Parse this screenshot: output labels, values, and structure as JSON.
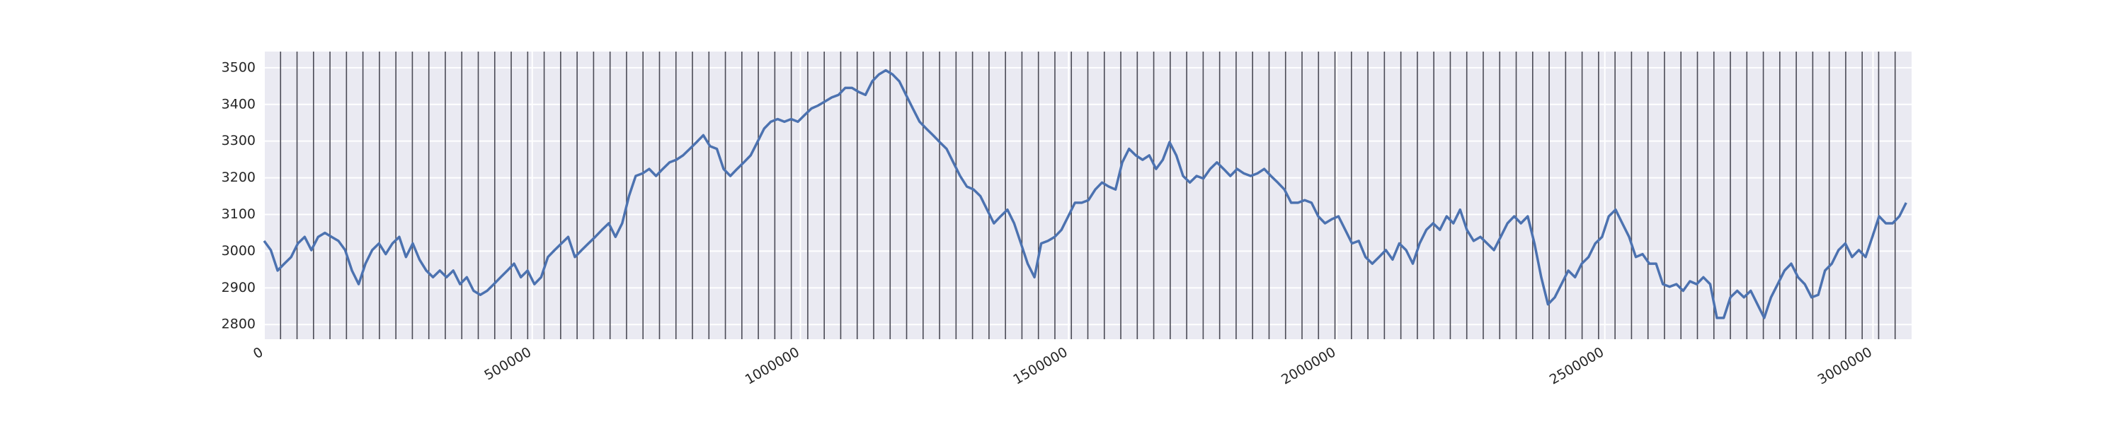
{
  "chart_data": {
    "type": "line",
    "x": [
      0,
      12600,
      25200,
      37800,
      50400,
      63000,
      75600,
      88200,
      100800,
      113400,
      126000,
      138600,
      151200,
      163800,
      176400,
      189000,
      201600,
      214200,
      226800,
      239400,
      252000,
      264600,
      277200,
      289800,
      302400,
      315000,
      327600,
      340200,
      352800,
      365400,
      378000,
      390600,
      403200,
      415800,
      428400,
      441000,
      453600,
      466200,
      478800,
      491400,
      504000,
      516600,
      529200,
      541800,
      554400,
      567000,
      579600,
      592200,
      604800,
      617400,
      630000,
      642600,
      655200,
      667800,
      680400,
      693000,
      705600,
      718200,
      730800,
      743400,
      756000,
      768600,
      781200,
      793800,
      806400,
      819000,
      831600,
      844200,
      856800,
      869400,
      882000,
      894600,
      907200,
      919800,
      932400,
      945000,
      957600,
      970200,
      982800,
      995400,
      1008000,
      1020600,
      1033200,
      1045800,
      1058400,
      1071000,
      1083600,
      1096200,
      1108800,
      1121400,
      1134000,
      1146600,
      1159200,
      1171800,
      1184400,
      1197000,
      1209600,
      1222200,
      1234800,
      1247400,
      1260000,
      1272600,
      1285200,
      1297800,
      1310400,
      1323000,
      1335600,
      1348200,
      1360800,
      1373400,
      1386000,
      1398600,
      1411200,
      1423800,
      1436400,
      1449000,
      1461600,
      1474200,
      1486800,
      1499400,
      1512000,
      1524600,
      1537200,
      1549800,
      1562400,
      1575000,
      1587600,
      1600200,
      1612800,
      1625400,
      1638000,
      1650600,
      1663200,
      1675800,
      1688400,
      1701000,
      1713600,
      1726200,
      1738800,
      1751400,
      1764000,
      1776600,
      1789200,
      1801800,
      1814400,
      1827000,
      1839600,
      1852200,
      1864800,
      1877400,
      1890000,
      1902600,
      1915200,
      1927800,
      1940400,
      1953000,
      1965600,
      1978200,
      1990800,
      2003400,
      2016000,
      2028600,
      2041200,
      2053800,
      2066400,
      2079000,
      2091600,
      2104200,
      2116800,
      2129400,
      2142000,
      2154600,
      2167200,
      2179800,
      2192400,
      2205000,
      2217600,
      2230200,
      2242800,
      2255400,
      2268000,
      2280600,
      2293200,
      2305800,
      2318400,
      2331000,
      2343600,
      2356200,
      2368800,
      2381400,
      2394000,
      2406600,
      2419200,
      2431800,
      2444400,
      2457000,
      2469600,
      2482200,
      2494800,
      2507400,
      2520000,
      2532600,
      2545200,
      2557800,
      2570400,
      2583000,
      2595600,
      2608200,
      2620800,
      2633400,
      2646000,
      2658600,
      2671200,
      2683800,
      2696400,
      2709000,
      2721600,
      2734200,
      2746800,
      2759400,
      2772000,
      2784600,
      2797200,
      2809800,
      2822400,
      2835000,
      2847600,
      2860200,
      2872800,
      2885400,
      2898000,
      2910600,
      2923200,
      2935800,
      2948400,
      2961000,
      2973600,
      2986200,
      2998800,
      3011400,
      3024000,
      3036600,
      3049200,
      3061800
    ],
    "series": [
      {
        "color": "#4c72b0",
        "values": [
          3028,
          3003,
          2947,
          2966,
          2984,
          3021,
          3039,
          3003,
          3039,
          3050,
          3039,
          3028,
          3003,
          2947,
          2910,
          2966,
          3003,
          3021,
          2992,
          3021,
          3039,
          2984,
          3021,
          2977,
          2947,
          2929,
          2947,
          2929,
          2947,
          2910,
          2929,
          2892,
          2881,
          2892,
          2910,
          2929,
          2947,
          2966,
          2929,
          2947,
          2910,
          2929,
          2984,
          3003,
          3021,
          3039,
          2984,
          3003,
          3021,
          3039,
          3058,
          3076,
          3039,
          3076,
          3150,
          3205,
          3212,
          3224,
          3205,
          3224,
          3242,
          3249,
          3261,
          3279,
          3297,
          3316,
          3286,
          3279,
          3224,
          3205,
          3224,
          3242,
          3261,
          3297,
          3334,
          3353,
          3360,
          3353,
          3360,
          3353,
          3371,
          3389,
          3397,
          3408,
          3419,
          3426,
          3445,
          3445,
          3434,
          3426,
          3463,
          3482,
          3493,
          3482,
          3463,
          3426,
          3389,
          3353,
          3334,
          3316,
          3297,
          3279,
          3242,
          3205,
          3176,
          3168,
          3150,
          3113,
          3076,
          3095,
          3113,
          3076,
          3021,
          2966,
          2929,
          3021,
          3028,
          3039,
          3058,
          3095,
          3132,
          3132,
          3139,
          3168,
          3187,
          3176,
          3168,
          3242,
          3279,
          3261,
          3249,
          3261,
          3224,
          3249,
          3297,
          3261,
          3205,
          3187,
          3205,
          3198,
          3224,
          3242,
          3224,
          3205,
          3224,
          3212,
          3205,
          3212,
          3224,
          3205,
          3187,
          3168,
          3132,
          3132,
          3139,
          3132,
          3095,
          3076,
          3087,
          3095,
          3058,
          3021,
          3028,
          2984,
          2966,
          2984,
          3003,
          2977,
          3021,
          3003,
          2966,
          3021,
          3058,
          3076,
          3058,
          3095,
          3076,
          3113,
          3058,
          3028,
          3039,
          3021,
          3003,
          3039,
          3076,
          3095,
          3076,
          3095,
          3021,
          2929,
          2855,
          2874,
          2910,
          2947,
          2929,
          2966,
          2984,
          3021,
          3039,
          3095,
          3113,
          3076,
          3039,
          2984,
          2992,
          2966,
          2966,
          2910,
          2903,
          2910,
          2892,
          2918,
          2910,
          2929,
          2910,
          2818,
          2818,
          2874,
          2892,
          2874,
          2892,
          2855,
          2818,
          2874,
          2910,
          2947,
          2966,
          2929,
          2910,
          2874,
          2881,
          2947,
          2966,
          3003,
          3021,
          2984,
          3003,
          2984,
          3039,
          3095,
          3076,
          3076,
          3095,
          3132
        ]
      }
    ],
    "vlines": [
      30720,
      61440,
      92160,
      122880,
      153600,
      184320,
      215040,
      245760,
      276480,
      307200,
      337920,
      368640,
      399360,
      430080,
      460800,
      491520,
      522240,
      552960,
      583680,
      614400,
      645120,
      675840,
      706560,
      737280,
      768000,
      798720,
      829440,
      860160,
      890880,
      921600,
      952320,
      983040,
      1013760,
      1044480,
      1075200,
      1105920,
      1136640,
      1167360,
      1198080,
      1228800,
      1259520,
      1290240,
      1320960,
      1351680,
      1382400,
      1413120,
      1443840,
      1474560,
      1505280,
      1536000,
      1566720,
      1597440,
      1628160,
      1658880,
      1689600,
      1720320,
      1751040,
      1781760,
      1812480,
      1843200,
      1873920,
      1904640,
      1935360,
      1966080,
      1996800,
      2027520,
      2058240,
      2088960,
      2119680,
      2150400,
      2181120,
      2211840,
      2242560,
      2273280,
      2304000,
      2334720,
      2365440,
      2396160,
      2426880,
      2457600,
      2488320,
      2519040,
      2549760,
      2580480,
      2611200,
      2641920,
      2672640,
      2703360,
      2734080,
      2764800,
      2795520,
      2826240,
      2856960,
      2887680,
      2918400,
      2949120,
      2979840,
      3010560,
      3041280
    ],
    "vline_color": "#4a4a55",
    "xlim": [
      0,
      3072000
    ],
    "xticks": [
      0,
      500000,
      1000000,
      1500000,
      2000000,
      2500000,
      3000000
    ],
    "ylim": [
      2760,
      3544
    ],
    "yticks": [
      2800,
      2900,
      3000,
      3100,
      3200,
      3300,
      3400,
      3500
    ],
    "grid": true
  }
}
